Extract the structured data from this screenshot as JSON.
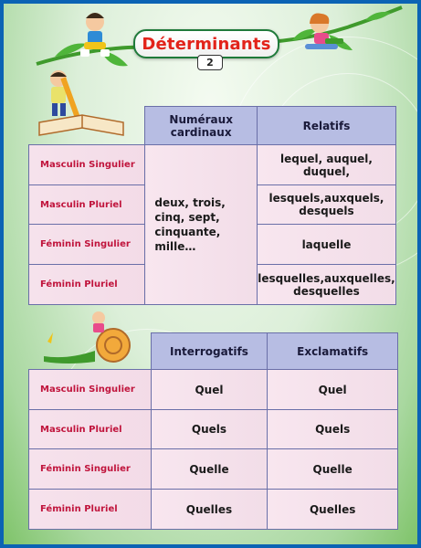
{
  "title": "Déterminants",
  "page_number": "2",
  "table1": {
    "headers": [
      "Numéraux cardinaux",
      "Relatifs"
    ],
    "rows": [
      {
        "label": "Masculin Singulier",
        "relatif": "lequel, auquel, duquel,"
      },
      {
        "label": "Masculin Pluriel",
        "relatif": "lesquels,auxquels, desquels"
      },
      {
        "label": "Féminin Singulier",
        "relatif": "laquelle"
      },
      {
        "label": "Féminin Pluriel",
        "relatif": "lesquelles,auxquelles, desquelles"
      }
    ],
    "cardinaux": "deux, trois, cinq, sept, cinquante, mille…"
  },
  "table2": {
    "headers": [
      "Interrogatifs",
      "Exclamatifs"
    ],
    "rows": [
      {
        "label": "Masculin Singulier",
        "interrogatif": "Quel",
        "exclamatif": "Quel"
      },
      {
        "label": "Masculin Pluriel",
        "interrogatif": "Quels",
        "exclamatif": "Quels"
      },
      {
        "label": "Féminin Singulier",
        "interrogatif": "Quelle",
        "exclamatif": "Quelle"
      },
      {
        "label": "Féminin Pluriel",
        "interrogatif": "Quelles",
        "exclamatif": "Quelles"
      }
    ]
  },
  "icons": [
    "cartoon-boy-icon",
    "cartoon-girl-icon",
    "child-with-pencil-icon",
    "open-book-icon",
    "snail-icon",
    "vine-decoration-icon"
  ],
  "colors": {
    "frame": "#0b63b4",
    "title": "#e2231a",
    "row_label": "#c0143c",
    "header_bg": "#b7bde3"
  }
}
